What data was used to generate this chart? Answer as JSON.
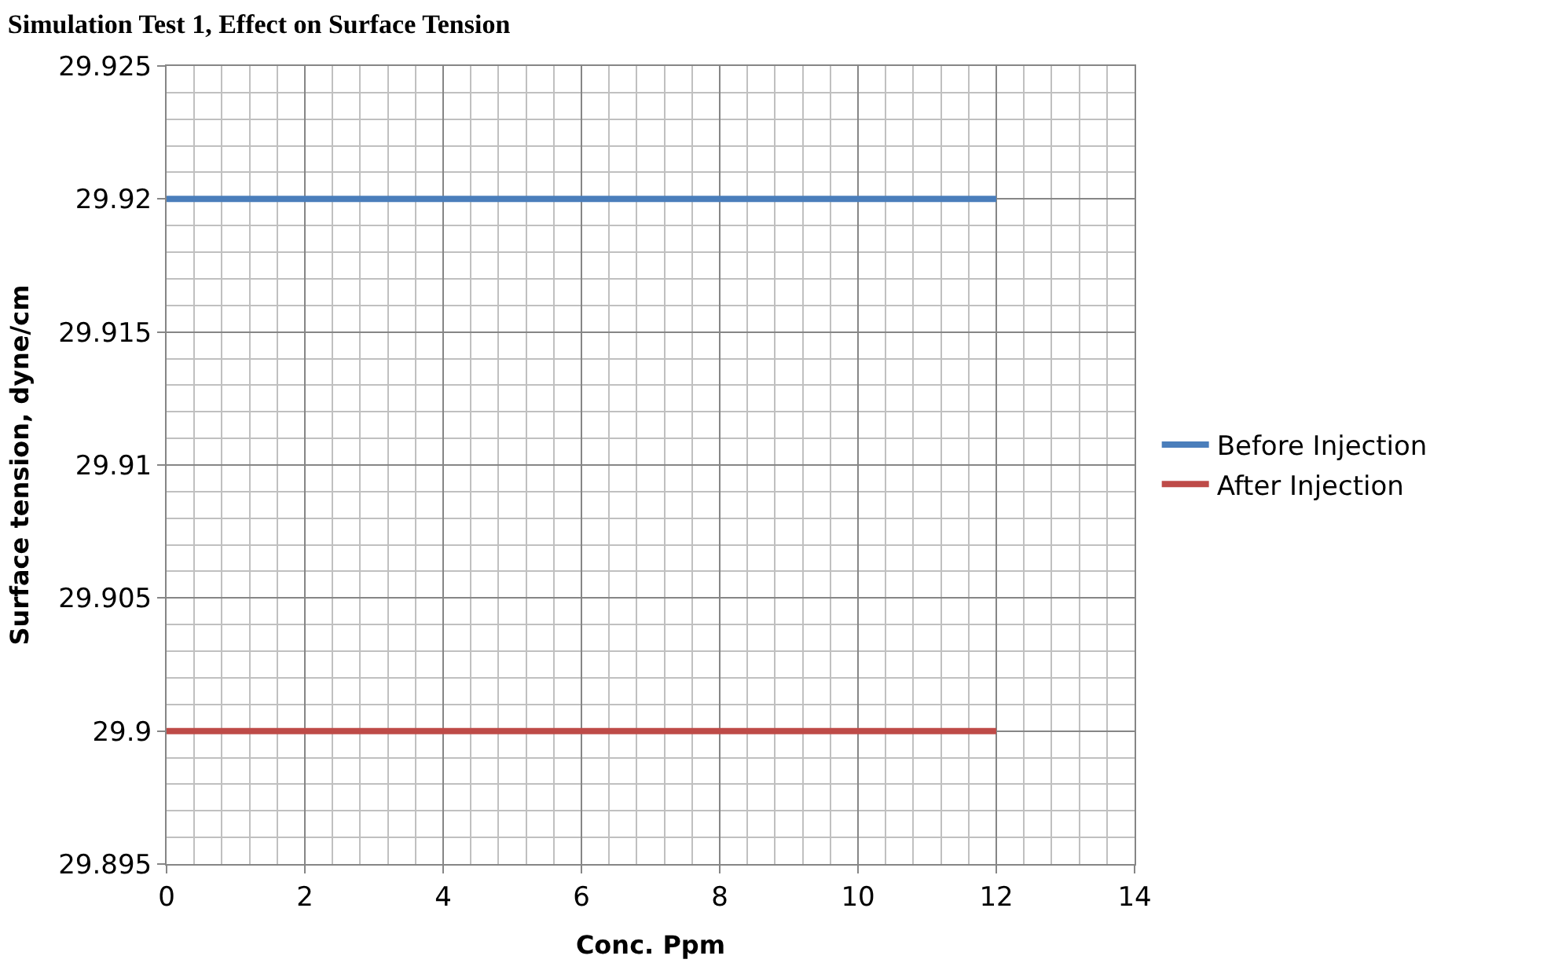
{
  "chart_data": {
    "type": "line",
    "title": "Simulation Test 1, Effect on Surface Tension",
    "xlabel": "Conc. Ppm",
    "ylabel": "Surface tension, dyne/cm",
    "x": [
      0,
      12
    ],
    "series": [
      {
        "name": "Before Injection",
        "color": "#4a7ebb",
        "values": [
          29.92,
          29.92
        ]
      },
      {
        "name": "After Injection",
        "color": "#be4b48",
        "values": [
          29.9,
          29.9
        ]
      }
    ],
    "xlim": [
      0,
      14
    ],
    "xticks": [
      0,
      2,
      4,
      6,
      8,
      10,
      12,
      14
    ],
    "ylim": [
      29.895,
      29.925
    ],
    "yticks": [
      29.895,
      29.9,
      29.905,
      29.91,
      29.915,
      29.92,
      29.925
    ],
    "grid": true,
    "legend": "right",
    "marker": "none",
    "line_style": "solid"
  }
}
